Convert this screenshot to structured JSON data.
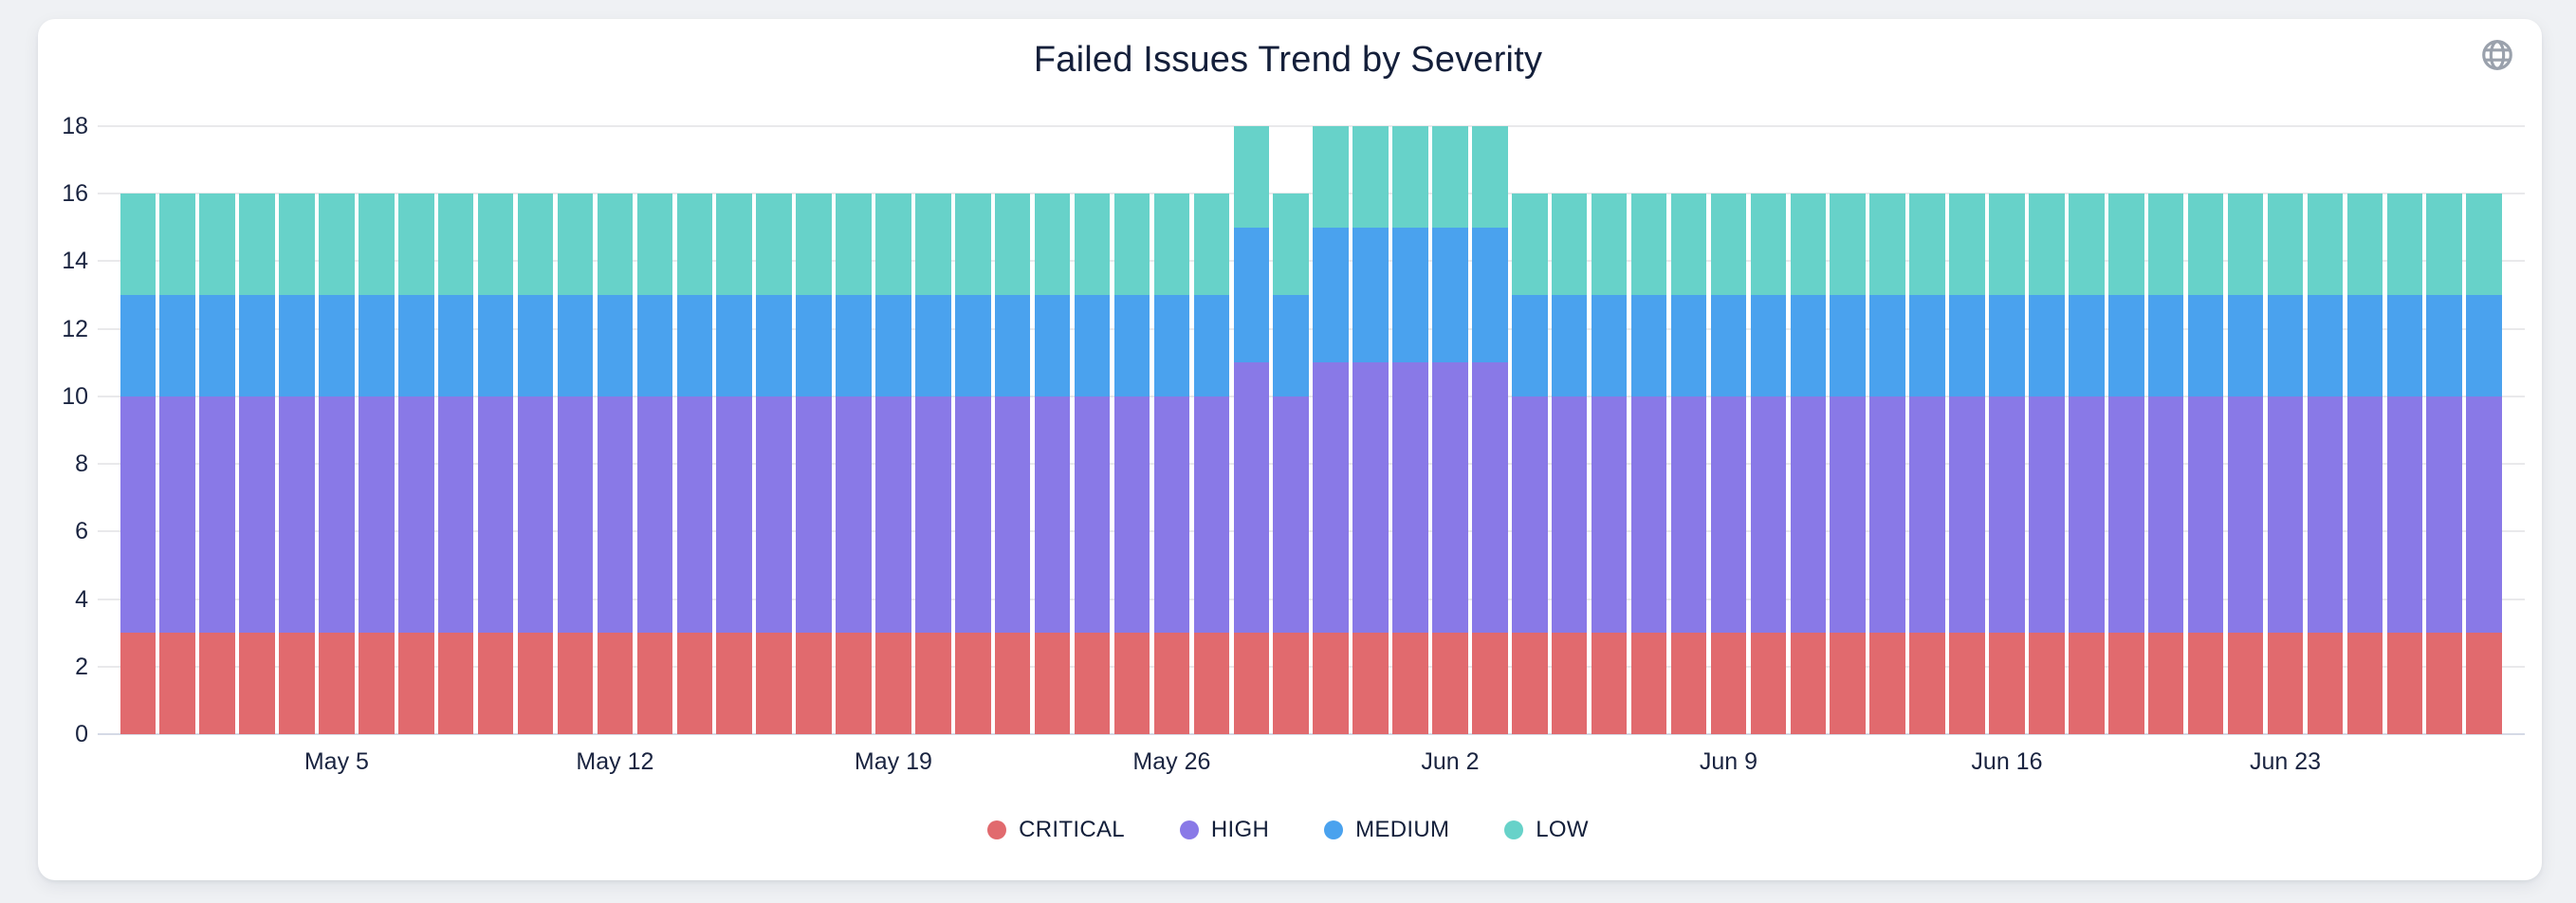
{
  "page": {
    "background": "#eff1f4",
    "card_background": "#ffffff"
  },
  "header": {
    "title": "Failed Issues Trend by Severity",
    "globe_icon": "globe-icon",
    "icon_color": "#9aa1ac"
  },
  "axis_colors": {
    "label": "#1a2440",
    "gridline": "#e9e9eb",
    "baseline": "#d5dae6"
  },
  "chart_data": {
    "type": "bar",
    "stacked": true,
    "title": "Failed Issues Trend by Severity",
    "xlabel": "",
    "ylabel": "",
    "ylim": [
      0,
      18
    ],
    "y_ticks": [
      0,
      2,
      4,
      6,
      8,
      10,
      12,
      14,
      16,
      18
    ],
    "grid": true,
    "legend_position": "bottom",
    "categories": [
      "Apr 30",
      "May 1",
      "May 2",
      "May 3",
      "May 4",
      "May 5",
      "May 6",
      "May 7",
      "May 8",
      "May 9",
      "May 10",
      "May 11",
      "May 12",
      "May 13",
      "May 14",
      "May 15",
      "May 16",
      "May 17",
      "May 18",
      "May 19",
      "May 20",
      "May 21",
      "May 22",
      "May 23",
      "May 24",
      "May 25",
      "May 26",
      "May 27",
      "May 28",
      "May 29",
      "May 30",
      "May 31",
      "Jun 1",
      "Jun 2",
      "Jun 3",
      "Jun 4",
      "Jun 5",
      "Jun 6",
      "Jun 7",
      "Jun 8",
      "Jun 9",
      "Jun 10",
      "Jun 11",
      "Jun 12",
      "Jun 13",
      "Jun 14",
      "Jun 15",
      "Jun 16",
      "Jun 17",
      "Jun 18",
      "Jun 19",
      "Jun 20",
      "Jun 21",
      "Jun 22",
      "Jun 23",
      "Jun 24",
      "Jun 25",
      "Jun 26",
      "Jun 27",
      "Jun 28"
    ],
    "x_ticks": [
      {
        "index": 5,
        "label": "May 5"
      },
      {
        "index": 12,
        "label": "May 12"
      },
      {
        "index": 19,
        "label": "May 19"
      },
      {
        "index": 26,
        "label": "May 26"
      },
      {
        "index": 33,
        "label": "Jun 2"
      },
      {
        "index": 40,
        "label": "Jun 9"
      },
      {
        "index": 47,
        "label": "Jun 16"
      },
      {
        "index": 54,
        "label": "Jun 23"
      }
    ],
    "series": [
      {
        "name": "CRITICAL",
        "color": "#e16a6e",
        "values": [
          3,
          3,
          3,
          3,
          3,
          3,
          3,
          3,
          3,
          3,
          3,
          3,
          3,
          3,
          3,
          3,
          3,
          3,
          3,
          3,
          3,
          3,
          3,
          3,
          3,
          3,
          3,
          3,
          3,
          3,
          3,
          3,
          3,
          3,
          3,
          3,
          3,
          3,
          3,
          3,
          3,
          3,
          3,
          3,
          3,
          3,
          3,
          3,
          3,
          3,
          3,
          3,
          3,
          3,
          3,
          3,
          3,
          3,
          3,
          3
        ]
      },
      {
        "name": "HIGH",
        "color": "#8979e7",
        "values": [
          7,
          7,
          7,
          7,
          7,
          7,
          7,
          7,
          7,
          7,
          7,
          7,
          7,
          7,
          7,
          7,
          7,
          7,
          7,
          7,
          7,
          7,
          7,
          7,
          7,
          7,
          7,
          7,
          8,
          7,
          8,
          8,
          8,
          8,
          8,
          7,
          7,
          7,
          7,
          7,
          7,
          7,
          7,
          7,
          7,
          7,
          7,
          7,
          7,
          7,
          7,
          7,
          7,
          7,
          7,
          7,
          7,
          7,
          7,
          7
        ]
      },
      {
        "name": "MEDIUM",
        "color": "#4aa2ee",
        "values": [
          3,
          3,
          3,
          3,
          3,
          3,
          3,
          3,
          3,
          3,
          3,
          3,
          3,
          3,
          3,
          3,
          3,
          3,
          3,
          3,
          3,
          3,
          3,
          3,
          3,
          3,
          3,
          3,
          4,
          3,
          4,
          4,
          4,
          4,
          4,
          3,
          3,
          3,
          3,
          3,
          3,
          3,
          3,
          3,
          3,
          3,
          3,
          3,
          3,
          3,
          3,
          3,
          3,
          3,
          3,
          3,
          3,
          3,
          3,
          3
        ]
      },
      {
        "name": "LOW",
        "color": "#67d2c9",
        "values": [
          3,
          3,
          3,
          3,
          3,
          3,
          3,
          3,
          3,
          3,
          3,
          3,
          3,
          3,
          3,
          3,
          3,
          3,
          3,
          3,
          3,
          3,
          3,
          3,
          3,
          3,
          3,
          3,
          3,
          3,
          3,
          3,
          3,
          3,
          3,
          3,
          3,
          3,
          3,
          3,
          3,
          3,
          3,
          3,
          3,
          3,
          3,
          3,
          3,
          3,
          3,
          3,
          3,
          3,
          3,
          3,
          3,
          3,
          3,
          3
        ]
      }
    ]
  }
}
